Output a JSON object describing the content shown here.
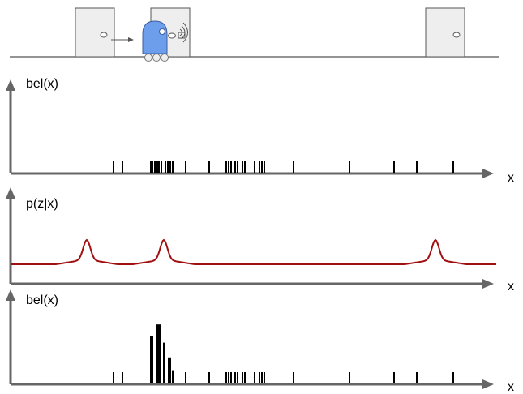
{
  "panels": {
    "prior": {
      "ylabel": "bel(x)",
      "xlabel": "x",
      "particles": [
        {
          "x": 140,
          "h": 1
        },
        {
          "x": 151,
          "h": 1
        },
        {
          "x": 186,
          "h": 1
        },
        {
          "x": 188,
          "h": 1
        },
        {
          "x": 191,
          "h": 1
        },
        {
          "x": 194,
          "h": 1
        },
        {
          "x": 196,
          "h": 1
        },
        {
          "x": 199,
          "h": 1
        },
        {
          "x": 204,
          "h": 1
        },
        {
          "x": 207,
          "h": 1
        },
        {
          "x": 210,
          "h": 1
        },
        {
          "x": 213,
          "h": 1
        },
        {
          "x": 229,
          "h": 1
        },
        {
          "x": 258,
          "h": 1
        },
        {
          "x": 279,
          "h": 1
        },
        {
          "x": 282,
          "h": 1
        },
        {
          "x": 285,
          "h": 1
        },
        {
          "x": 290,
          "h": 1
        },
        {
          "x": 293,
          "h": 1
        },
        {
          "x": 299,
          "h": 1
        },
        {
          "x": 302,
          "h": 1
        },
        {
          "x": 314,
          "h": 1
        },
        {
          "x": 320,
          "h": 1
        },
        {
          "x": 323,
          "h": 1
        },
        {
          "x": 326,
          "h": 1
        },
        {
          "x": 362,
          "h": 1
        },
        {
          "x": 431,
          "h": 1
        },
        {
          "x": 486,
          "h": 1
        },
        {
          "x": 514,
          "h": 1
        },
        {
          "x": 559,
          "h": 1
        }
      ]
    },
    "likelihood": {
      "ylabel": "p(z|x)",
      "xlabel": "x",
      "baseline": 0.0,
      "peaks": [
        {
          "center": 107,
          "height": 1.0
        },
        {
          "center": 202,
          "height": 1.0
        },
        {
          "center": 537,
          "height": 1.0
        }
      ]
    },
    "posterior": {
      "ylabel": "bel(x)",
      "xlabel": "x",
      "particles": [
        {
          "x": 140,
          "h": 1
        },
        {
          "x": 151,
          "h": 1
        },
        {
          "x": 186,
          "h": 4.2
        },
        {
          "x": 188,
          "h": 4.2
        },
        {
          "x": 193,
          "h": 5.2
        },
        {
          "x": 195,
          "h": 5.2
        },
        {
          "x": 197,
          "h": 5.2
        },
        {
          "x": 202,
          "h": 3.6
        },
        {
          "x": 208,
          "h": 2.3
        },
        {
          "x": 210,
          "h": 2.3
        },
        {
          "x": 213,
          "h": 1.1
        },
        {
          "x": 229,
          "h": 1
        },
        {
          "x": 258,
          "h": 1
        },
        {
          "x": 279,
          "h": 1
        },
        {
          "x": 282,
          "h": 1
        },
        {
          "x": 285,
          "h": 1
        },
        {
          "x": 290,
          "h": 1
        },
        {
          "x": 293,
          "h": 1
        },
        {
          "x": 299,
          "h": 1
        },
        {
          "x": 302,
          "h": 1
        },
        {
          "x": 314,
          "h": 1
        },
        {
          "x": 320,
          "h": 1
        },
        {
          "x": 323,
          "h": 1
        },
        {
          "x": 326,
          "h": 1
        },
        {
          "x": 362,
          "h": 1
        },
        {
          "x": 431,
          "h": 1
        },
        {
          "x": 486,
          "h": 1
        },
        {
          "x": 514,
          "h": 1
        },
        {
          "x": 559,
          "h": 1
        }
      ]
    }
  },
  "scene": {
    "doors": 3,
    "robot": "robot-with-sensor",
    "motion": "arrow-right"
  },
  "colors": {
    "axis": "#666666",
    "likelihood_curve": "#a01010",
    "robot_body": "#6d9eeb",
    "door_fill": "#eeeeee",
    "particle": "#000000"
  }
}
